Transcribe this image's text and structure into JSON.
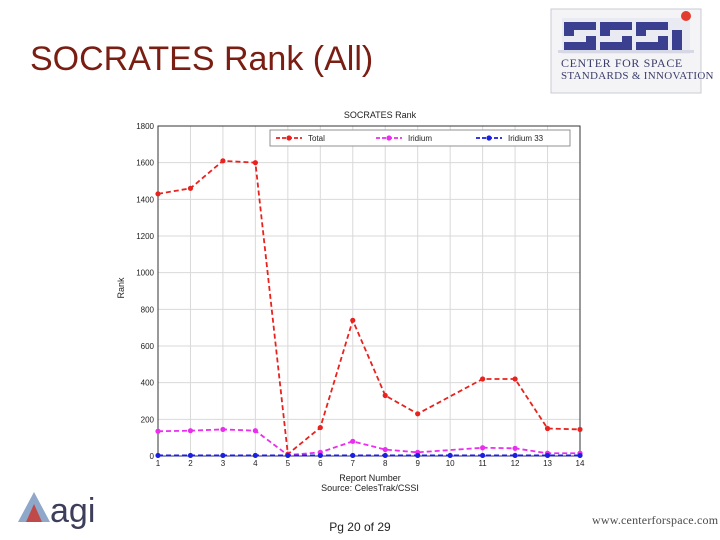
{
  "slide": {
    "title": "SOCRATES Rank (All)",
    "footer": "Pg 20 of 29"
  },
  "logos": {
    "cssi": {
      "acronym": "CSSI",
      "line1": "CENTER FOR SPACE",
      "line2": "STANDARDS & INNOVATION"
    },
    "agi": {
      "text": "agi"
    },
    "url": "www.centerforspace.com"
  },
  "colors": {
    "title": "#7a1d12",
    "total": "#e8231f",
    "iridium": "#ea2ef0",
    "iridium33": "#1b1fe0",
    "grid": "#d9d9d9"
  },
  "chart_data": {
    "type": "line",
    "title": "SOCRATES Rank",
    "xlabel": "Report Number",
    "ylabel": "Rank",
    "source_note": "Source: CelesTrak/CSSI",
    "x": [
      1,
      2,
      3,
      4,
      5,
      6,
      7,
      8,
      9,
      10,
      11,
      12,
      13,
      14
    ],
    "x_ticks": [
      "1",
      "2",
      "3",
      "4",
      "5",
      "6",
      "7",
      "8",
      "9",
      "10",
      "11",
      "12",
      "13",
      "14"
    ],
    "y_ticks": [
      "0",
      "200",
      "400",
      "600",
      "800",
      "1000",
      "1200",
      "1400",
      "1600",
      "1800"
    ],
    "xlim": [
      1,
      14
    ],
    "ylim": [
      0,
      1800
    ],
    "grid": true,
    "legend_position": "top",
    "series": [
      {
        "name": "Total",
        "color": "#e8231f",
        "values": [
          1430,
          1460,
          1610,
          1600,
          10,
          155,
          740,
          330,
          230,
          null,
          420,
          420,
          150,
          145
        ]
      },
      {
        "name": "Iridium",
        "color": "#ea2ef0",
        "values": [
          135,
          138,
          145,
          138,
          5,
          20,
          80,
          35,
          20,
          null,
          45,
          42,
          15,
          15
        ]
      },
      {
        "name": "Iridium 33",
        "color": "#1b1fe0",
        "values": [
          3,
          3,
          3,
          3,
          3,
          3,
          3,
          3,
          3,
          3,
          3,
          3,
          3,
          3
        ]
      }
    ]
  }
}
